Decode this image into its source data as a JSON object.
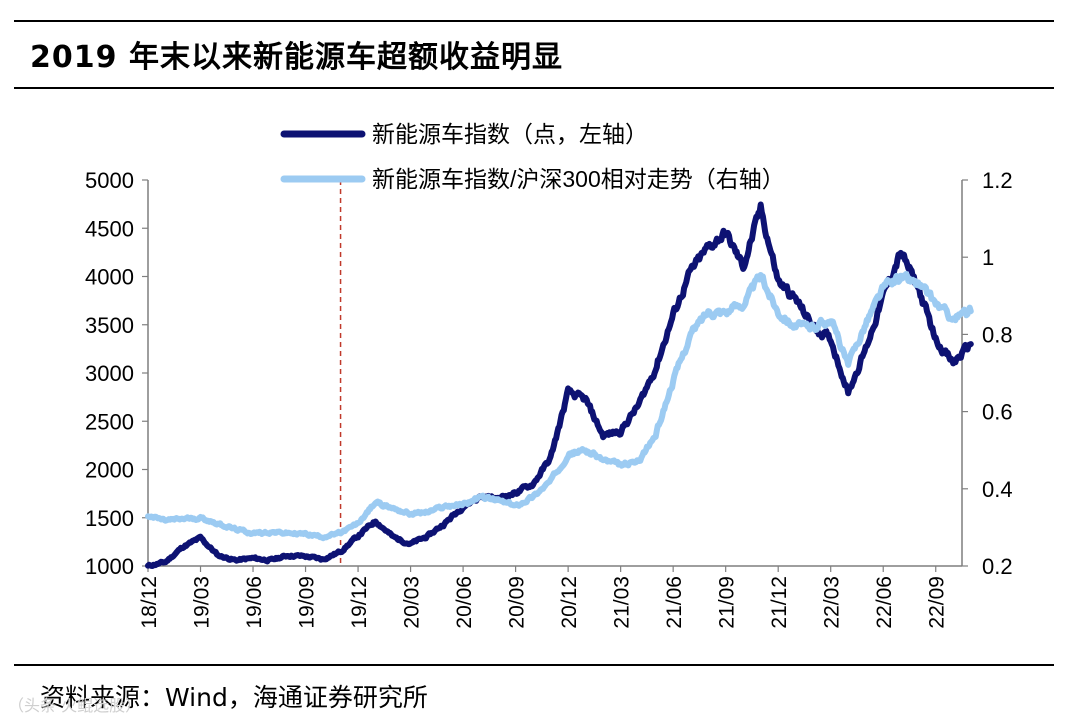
{
  "title": "2019 年末以来新能源车超额收益明显",
  "source": "资料来源：Wind，海通证券研究所",
  "watermark": "（头条 火鲲选股）",
  "colors": {
    "primary_series": "#0d1273",
    "secondary_series": "#9ccbf2",
    "marker_line": "#c0392b",
    "axis": "#7f7f7f"
  },
  "chart_data": {
    "type": "line",
    "title": "2019 年末以来新能源车超额收益明显",
    "x_ticks": [
      "18/12",
      "19/03",
      "19/06",
      "19/09",
      "19/12",
      "20/03",
      "20/06",
      "20/09",
      "20/12",
      "21/03",
      "21/06",
      "21/09",
      "21/12",
      "22/03",
      "22/06",
      "22/09"
    ],
    "y_left": {
      "ticks": [
        5000,
        4500,
        4000,
        3500,
        3000,
        2500,
        2000,
        1500,
        1000
      ],
      "range": [
        1000,
        5000
      ]
    },
    "y_right": {
      "ticks": [
        "1.2",
        "1",
        "0.8",
        "0.6",
        "0.4",
        "0.2"
      ],
      "range": [
        0.2,
        1.2
      ]
    },
    "vertical_marker": {
      "at": "19/11",
      "style": "dashed"
    },
    "legend_position": "top-center",
    "series": [
      {
        "name": "新能源车指数（点，左轴）",
        "axis": "left",
        "points": [
          [
            "18/12",
            1000
          ],
          [
            "19/01",
            1040
          ],
          [
            "19/02",
            1200
          ],
          [
            "19/03",
            1290
          ],
          [
            "19/04",
            1110
          ],
          [
            "19/05",
            1060
          ],
          [
            "19/06",
            1080
          ],
          [
            "19/07",
            1060
          ],
          [
            "19/08",
            1110
          ],
          [
            "19/09",
            1100
          ],
          [
            "19/10",
            1070
          ],
          [
            "19/11",
            1150
          ],
          [
            "19/12",
            1310
          ],
          [
            "20/01",
            1470
          ],
          [
            "20/02",
            1300
          ],
          [
            "20/03",
            1230
          ],
          [
            "20/04",
            1310
          ],
          [
            "20/05",
            1450
          ],
          [
            "20/06",
            1620
          ],
          [
            "20/07",
            1720
          ],
          [
            "20/08",
            1700
          ],
          [
            "20/09",
            1760
          ],
          [
            "20/10",
            1850
          ],
          [
            "20/11",
            2120
          ],
          [
            "20/12",
            2800
          ],
          [
            "21/01",
            2720
          ],
          [
            "21/02",
            2350
          ],
          [
            "21/03",
            2400
          ],
          [
            "21/04",
            2660
          ],
          [
            "21/05",
            3050
          ],
          [
            "21/06",
            3600
          ],
          [
            "21/07",
            4050
          ],
          [
            "21/08",
            4300
          ],
          [
            "21/09",
            4450
          ],
          [
            "21/10",
            4100
          ],
          [
            "21/11",
            4700
          ],
          [
            "21/12",
            3950
          ],
          [
            "22/01",
            3760
          ],
          [
            "22/02",
            3480
          ],
          [
            "22/03",
            3350
          ],
          [
            "22/04",
            2800
          ],
          [
            "22/05",
            3250
          ],
          [
            "22/06",
            3800
          ],
          [
            "22/07",
            4250
          ],
          [
            "22/08",
            3880
          ],
          [
            "22/09",
            3350
          ],
          [
            "22/10",
            3100
          ],
          [
            "22/11",
            3300
          ]
        ]
      },
      {
        "name": "新能源车指数/沪深300相对走势（右轴）",
        "axis": "right",
        "points": [
          [
            "18/12",
            0.33
          ],
          [
            "19/01",
            0.318
          ],
          [
            "19/02",
            0.322
          ],
          [
            "19/03",
            0.325
          ],
          [
            "19/04",
            0.31
          ],
          [
            "19/05",
            0.295
          ],
          [
            "19/06",
            0.285
          ],
          [
            "19/07",
            0.288
          ],
          [
            "19/08",
            0.285
          ],
          [
            "19/09",
            0.283
          ],
          [
            "19/10",
            0.276
          ],
          [
            "19/11",
            0.285
          ],
          [
            "19/12",
            0.31
          ],
          [
            "20/01",
            0.365
          ],
          [
            "20/02",
            0.35
          ],
          [
            "20/03",
            0.335
          ],
          [
            "20/04",
            0.34
          ],
          [
            "20/05",
            0.355
          ],
          [
            "20/06",
            0.36
          ],
          [
            "20/07",
            0.378
          ],
          [
            "20/08",
            0.37
          ],
          [
            "20/09",
            0.355
          ],
          [
            "20/10",
            0.38
          ],
          [
            "20/11",
            0.42
          ],
          [
            "20/12",
            0.49
          ],
          [
            "21/01",
            0.5
          ],
          [
            "21/02",
            0.475
          ],
          [
            "21/03",
            0.46
          ],
          [
            "21/04",
            0.47
          ],
          [
            "21/05",
            0.54
          ],
          [
            "21/06",
            0.68
          ],
          [
            "21/07",
            0.8
          ],
          [
            "21/08",
            0.86
          ],
          [
            "21/09",
            0.86
          ],
          [
            "21/10",
            0.88
          ],
          [
            "21/11",
            0.95
          ],
          [
            "21/12",
            0.86
          ],
          [
            "22/01",
            0.82
          ],
          [
            "22/02",
            0.82
          ],
          [
            "22/03",
            0.84
          ],
          [
            "22/04",
            0.72
          ],
          [
            "22/05",
            0.83
          ],
          [
            "22/06",
            0.92
          ],
          [
            "22/07",
            0.95
          ],
          [
            "22/08",
            0.93
          ],
          [
            "22/09",
            0.88
          ],
          [
            "22/10",
            0.84
          ],
          [
            "22/11",
            0.86
          ]
        ]
      }
    ]
  }
}
